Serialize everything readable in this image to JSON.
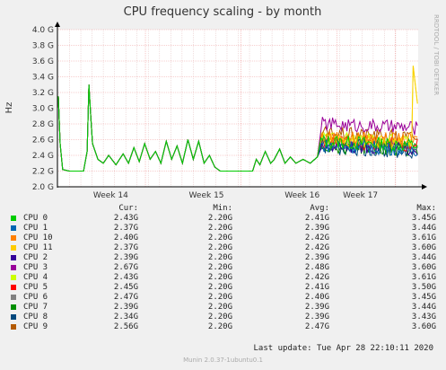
{
  "chart_data": {
    "type": "line",
    "title": "CPU frequency scaling - by month",
    "ylabel": "Hz",
    "ylim": [
      2.0,
      4.0
    ],
    "yticks": [
      "2.0 G",
      "2.2 G",
      "2.4 G",
      "2.6 G",
      "2.8 G",
      "3.0 G",
      "3.2 G",
      "3.4 G",
      "3.6 G",
      "3.8 G",
      "4.0 G"
    ],
    "xlim": [
      0,
      1
    ],
    "xticks": [
      {
        "label": "Week 14",
        "pos": 0.242
      },
      {
        "label": "Week 15",
        "pos": 0.508
      },
      {
        "label": "Week 16",
        "pos": 0.774
      },
      {
        "label": "Week 17",
        "pos": 0.936
      }
    ],
    "grid": true,
    "series": [
      {
        "name": "CPU 0",
        "color": "#00cc00"
      },
      {
        "name": "CPU 1",
        "color": "#0066b3"
      },
      {
        "name": "CPU 10",
        "color": "#ff8000"
      },
      {
        "name": "CPU 11",
        "color": "#ffcc00"
      },
      {
        "name": "CPU 2",
        "color": "#330099"
      },
      {
        "name": "CPU 3",
        "color": "#990099"
      },
      {
        "name": "CPU 4",
        "color": "#ccff00"
      },
      {
        "name": "CPU 5",
        "color": "#ff0000"
      },
      {
        "name": "CPU 6",
        "color": "#808080"
      },
      {
        "name": "CPU 7",
        "color": "#008f00"
      },
      {
        "name": "CPU 8",
        "color": "#00487d"
      },
      {
        "name": "CPU 9",
        "color": "#b35a00"
      }
    ],
    "shared_profile_until_0_72": [
      [
        0.0,
        3.15
      ],
      [
        0.005,
        2.55
      ],
      [
        0.012,
        2.22
      ],
      [
        0.03,
        2.2
      ],
      [
        0.07,
        2.2
      ],
      [
        0.08,
        2.45
      ],
      [
        0.085,
        3.3
      ],
      [
        0.09,
        2.9
      ],
      [
        0.095,
        2.55
      ],
      [
        0.11,
        2.35
      ],
      [
        0.125,
        2.3
      ],
      [
        0.14,
        2.4
      ],
      [
        0.16,
        2.28
      ],
      [
        0.18,
        2.42
      ],
      [
        0.195,
        2.3
      ],
      [
        0.21,
        2.5
      ],
      [
        0.225,
        2.32
      ],
      [
        0.24,
        2.55
      ],
      [
        0.255,
        2.35
      ],
      [
        0.27,
        2.45
      ],
      [
        0.285,
        2.3
      ],
      [
        0.3,
        2.58
      ],
      [
        0.315,
        2.35
      ],
      [
        0.33,
        2.52
      ],
      [
        0.345,
        2.3
      ],
      [
        0.36,
        2.6
      ],
      [
        0.375,
        2.35
      ],
      [
        0.39,
        2.58
      ],
      [
        0.405,
        2.3
      ],
      [
        0.42,
        2.4
      ],
      [
        0.435,
        2.25
      ],
      [
        0.45,
        2.2
      ],
      [
        0.5,
        2.2
      ],
      [
        0.54,
        2.2
      ],
      [
        0.55,
        2.35
      ],
      [
        0.56,
        2.28
      ],
      [
        0.575,
        2.45
      ],
      [
        0.59,
        2.3
      ],
      [
        0.6,
        2.35
      ],
      [
        0.615,
        2.48
      ],
      [
        0.63,
        2.3
      ],
      [
        0.645,
        2.38
      ],
      [
        0.66,
        2.3
      ],
      [
        0.68,
        2.35
      ],
      [
        0.7,
        2.3
      ],
      [
        0.72,
        2.38
      ]
    ],
    "legend_header": {
      "cur": "Cur:",
      "min": "Min:",
      "avg": "Avg:",
      "max": "Max:"
    },
    "legend_rows": [
      {
        "name": "CPU 0",
        "cur": "2.43G",
        "min": "2.20G",
        "avg": "2.41G",
        "max": "3.45G"
      },
      {
        "name": "CPU 1",
        "cur": "2.37G",
        "min": "2.20G",
        "avg": "2.39G",
        "max": "3.44G"
      },
      {
        "name": "CPU 10",
        "cur": "2.40G",
        "min": "2.20G",
        "avg": "2.42G",
        "max": "3.61G"
      },
      {
        "name": "CPU 11",
        "cur": "2.37G",
        "min": "2.20G",
        "avg": "2.42G",
        "max": "3.60G"
      },
      {
        "name": "CPU 2",
        "cur": "2.39G",
        "min": "2.20G",
        "avg": "2.39G",
        "max": "3.44G"
      },
      {
        "name": "CPU 3",
        "cur": "2.67G",
        "min": "2.20G",
        "avg": "2.48G",
        "max": "3.60G"
      },
      {
        "name": "CPU 4",
        "cur": "2.43G",
        "min": "2.20G",
        "avg": "2.42G",
        "max": "3.61G"
      },
      {
        "name": "CPU 5",
        "cur": "2.45G",
        "min": "2.20G",
        "avg": "2.41G",
        "max": "3.50G"
      },
      {
        "name": "CPU 6",
        "cur": "2.47G",
        "min": "2.20G",
        "avg": "2.40G",
        "max": "3.45G"
      },
      {
        "name": "CPU 7",
        "cur": "2.39G",
        "min": "2.20G",
        "avg": "2.39G",
        "max": "3.44G"
      },
      {
        "name": "CPU 8",
        "cur": "2.34G",
        "min": "2.20G",
        "avg": "2.39G",
        "max": "3.43G"
      },
      {
        "name": "CPU 9",
        "cur": "2.56G",
        "min": "2.20G",
        "avg": "2.47G",
        "max": "3.60G"
      }
    ]
  },
  "side_label": "RRDTOOL / TOBI OETIKER",
  "last_update": "Last update: Tue Apr 28 22:10:11 2020",
  "munin_version": "Munin 2.0.37-1ubuntu0.1"
}
